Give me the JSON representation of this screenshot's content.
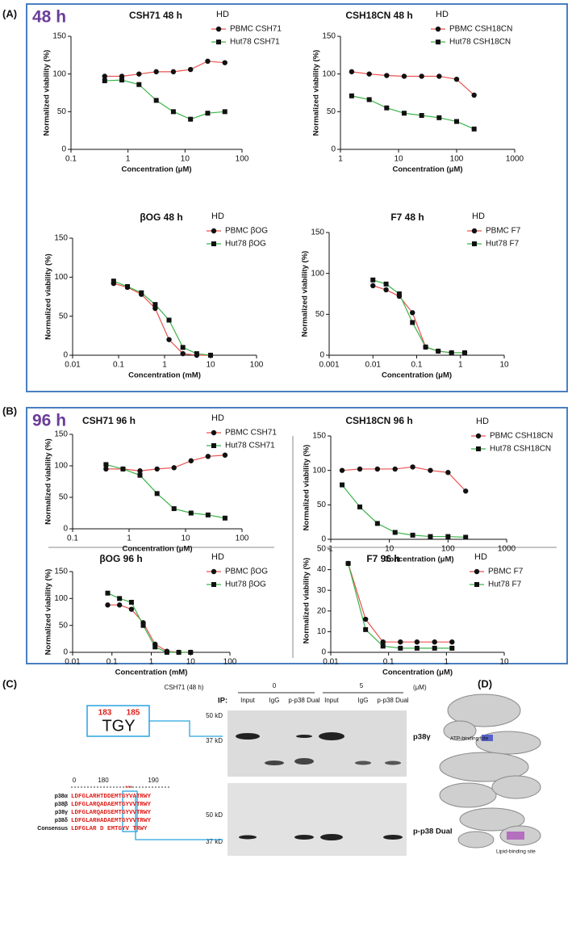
{
  "chart_data": [
    {
      "type": "line",
      "title": "CSH71 48 h",
      "xlabel": "Concentration (μM)",
      "ylabel": "Normalized viability (%)",
      "legend_title": "HD",
      "xscale": "log",
      "x": [
        0.39,
        0.78,
        1.56,
        3.13,
        6.25,
        12.5,
        25,
        50
      ],
      "series": [
        {
          "name": "PBMC CSH71",
          "color": "#e8534f",
          "marker": "circle",
          "values": [
            97,
            97,
            100,
            103,
            103,
            106,
            117,
            115
          ]
        },
        {
          "name": "Hut78 CSH71",
          "color": "#3cb34a",
          "marker": "square",
          "values": [
            91,
            92,
            86,
            65,
            50,
            40,
            48,
            50
          ]
        }
      ],
      "xlim": [
        0.1,
        100
      ],
      "xticks": [
        0.1,
        1,
        10,
        100
      ],
      "ylim": [
        0,
        150
      ],
      "yticks": [
        0,
        50,
        100,
        150
      ]
    },
    {
      "type": "line",
      "title": "CSH18CN 48 h",
      "xlabel": "Concentration (μM)",
      "ylabel": "Normalized viability (%)",
      "legend_title": "HD",
      "xscale": "log",
      "x": [
        1.56,
        3.13,
        6.25,
        12.5,
        25,
        50,
        100,
        200
      ],
      "series": [
        {
          "name": "PBMC CSH18CN",
          "color": "#e8534f",
          "marker": "circle",
          "values": [
            103,
            100,
            98,
            97,
            97,
            97,
            93,
            72
          ]
        },
        {
          "name": "Hut78 CSH18CN",
          "color": "#3cb34a",
          "marker": "square",
          "values": [
            71,
            66,
            55,
            48,
            45,
            42,
            37,
            27
          ]
        }
      ],
      "xlim": [
        1,
        1000
      ],
      "xticks": [
        1,
        10,
        100,
        1000
      ],
      "ylim": [
        0,
        150
      ],
      "yticks": [
        0,
        50,
        100,
        150
      ]
    },
    {
      "type": "line",
      "title": "βOG 48 h",
      "xlabel": "Concentration (mM)",
      "ylabel": "Normalized viability (%)",
      "legend_title": "HD",
      "xscale": "log",
      "x": [
        0.078,
        0.156,
        0.313,
        0.625,
        1.25,
        2.5,
        5,
        10
      ],
      "series": [
        {
          "name": "PBMC βOG",
          "color": "#e8534f",
          "marker": "circle",
          "values": [
            92,
            87,
            78,
            60,
            20,
            2,
            0,
            0
          ]
        },
        {
          "name": "Hut78 βOG",
          "color": "#3cb34a",
          "marker": "square",
          "values": [
            95,
            88,
            80,
            65,
            45,
            10,
            2,
            0
          ]
        }
      ],
      "xlim": [
        0.01,
        100
      ],
      "xticks": [
        0.01,
        0.1,
        1,
        10,
        100
      ],
      "ylim": [
        0,
        150
      ],
      "yticks": [
        0,
        50,
        100,
        150
      ]
    },
    {
      "type": "line",
      "title": "F7 48 h",
      "xlabel": "Concentration (μM)",
      "ylabel": "Normalized viability (%)",
      "legend_title": "HD",
      "xscale": "log",
      "x": [
        0.01,
        0.02,
        0.04,
        0.08,
        0.16,
        0.31,
        0.625,
        1.25
      ],
      "series": [
        {
          "name": "PBMC F7",
          "color": "#e8534f",
          "marker": "circle",
          "values": [
            85,
            80,
            72,
            52,
            10,
            5,
            3,
            3
          ]
        },
        {
          "name": "Hut78 F7",
          "color": "#3cb34a",
          "marker": "square",
          "values": [
            92,
            87,
            75,
            40,
            10,
            5,
            3,
            3
          ]
        }
      ],
      "xlim": [
        0.001,
        10
      ],
      "xticks": [
        0.001,
        0.01,
        0.1,
        1,
        10
      ],
      "ylim": [
        0,
        150
      ],
      "yticks": [
        0,
        50,
        100,
        150
      ]
    },
    {
      "type": "line",
      "title": "CSH71 96 h",
      "xlabel": "Concentration (μM)",
      "ylabel": "Normalized viability (%)",
      "legend_title": "HD",
      "xscale": "log",
      "x": [
        0.39,
        0.78,
        1.56,
        3.13,
        6.25,
        12.5,
        25,
        50
      ],
      "series": [
        {
          "name": "PBMC CSH71",
          "color": "#e8534f",
          "marker": "circle",
          "values": [
            95,
            95,
            92,
            95,
            97,
            108,
            115,
            117
          ]
        },
        {
          "name": "Hut78 CSH71",
          "color": "#3cb34a",
          "marker": "square",
          "values": [
            102,
            95,
            85,
            56,
            32,
            25,
            22,
            17
          ]
        }
      ],
      "xlim": [
        0.1,
        100
      ],
      "xticks": [
        0.1,
        1,
        10,
        100
      ],
      "ylim": [
        0,
        150
      ],
      "yticks": [
        0,
        50,
        100,
        150
      ]
    },
    {
      "type": "line",
      "title": "CSH18CN 96 h",
      "xlabel": "Concentration (μM)",
      "ylabel": "Normalized viability (%)",
      "legend_title": "HD",
      "xscale": "log",
      "x": [
        1.56,
        3.13,
        6.25,
        12.5,
        25,
        50,
        100,
        200
      ],
      "series": [
        {
          "name": "PBMC CSH18CN",
          "color": "#e8534f",
          "marker": "circle",
          "values": [
            100,
            102,
            102,
            102,
            105,
            100,
            97,
            70
          ]
        },
        {
          "name": "Hut78 CSH18CN",
          "color": "#3cb34a",
          "marker": "square",
          "values": [
            79,
            47,
            23,
            10,
            6,
            4,
            4,
            3
          ]
        }
      ],
      "xlim": [
        1,
        1000
      ],
      "xticks": [
        1,
        10,
        100,
        1000
      ],
      "ylim": [
        0,
        150
      ],
      "yticks": [
        0,
        50,
        100,
        150
      ]
    },
    {
      "type": "line",
      "title": "βOG 96 h",
      "xlabel": "Concentration (mM)",
      "ylabel": "Normalized viability (%)",
      "legend_title": "HD",
      "xscale": "log",
      "x": [
        0.078,
        0.156,
        0.313,
        0.625,
        1.25,
        2.5,
        5,
        10
      ],
      "series": [
        {
          "name": "PBMC βOG",
          "color": "#e8534f",
          "marker": "circle",
          "values": [
            88,
            88,
            80,
            55,
            15,
            2,
            0,
            0
          ]
        },
        {
          "name": "Hut78 βOG",
          "color": "#3cb34a",
          "marker": "square",
          "values": [
            110,
            100,
            93,
            50,
            10,
            0,
            0,
            0
          ]
        }
      ],
      "xlim": [
        0.01,
        100
      ],
      "xticks": [
        0.01,
        0.1,
        1,
        10,
        100
      ],
      "ylim": [
        0,
        150
      ],
      "yticks": [
        0,
        50,
        100,
        150
      ]
    },
    {
      "type": "line",
      "title": "F7 96 h",
      "xlabel": "Concentration (μM)",
      "ylabel": "Normalized viability (%)",
      "legend_title": "HD",
      "xscale": "log",
      "x": [
        0.02,
        0.04,
        0.08,
        0.16,
        0.31,
        0.625,
        1.25
      ],
      "series": [
        {
          "name": "PBMC F7",
          "color": "#e8534f",
          "marker": "circle",
          "values": [
            43,
            16,
            5,
            5,
            5,
            5,
            5
          ]
        },
        {
          "name": "Hut78 F7",
          "color": "#3cb34a",
          "marker": "square",
          "values": [
            43,
            11,
            3,
            2,
            2,
            2,
            2
          ]
        }
      ],
      "xlim": [
        0.01,
        10
      ],
      "xticks": [
        0.01,
        0.1,
        1,
        10
      ],
      "ylim": [
        0,
        50
      ],
      "yticks": [
        0,
        10,
        20,
        30,
        40,
        50
      ]
    }
  ],
  "panel_a": {
    "label": "(A)",
    "time": "48 h"
  },
  "panel_b": {
    "label": "(B)",
    "time": "96 h"
  },
  "panel_c": {
    "label": "(C)",
    "treatment": "CSH71 (48 h)",
    "doses": [
      "0",
      "5"
    ],
    "unit": "(μM)",
    "ip": "IP:",
    "lanes": [
      "Input",
      "IgG",
      "p-p38 Dual",
      "Input",
      "IgG",
      "p-p38 Dual"
    ],
    "blots": [
      "p38γ",
      "p-p38 Dual"
    ],
    "markers": [
      "50 kD",
      "37 kD",
      "50 kD",
      "37 kD"
    ],
    "residues": [
      "183",
      "185"
    ],
    "motif": "TGY",
    "stars": "***",
    "alignment": {
      "positions": [
        "0",
        "180",
        "190"
      ],
      "rows": [
        {
          "name": "p38α",
          "seq": "LDFGLARHTDDEMTGYVATRWY"
        },
        {
          "name": "p38β",
          "seq": "LDFGLARQADAEMTGYVVTRWY"
        },
        {
          "name": "p38γ",
          "seq": "LDFGLARQADSEMTGYVVTRWY"
        },
        {
          "name": "p38δ",
          "seq": "LDFGLARHADAEMTGYVVTRWY"
        },
        {
          "name": "Consensus",
          "seq": "LDFGLAR D EMTGYV TRWY"
        }
      ]
    }
  },
  "panel_d": {
    "label": "(D)",
    "sites": [
      "ATP-binding site",
      "Lipid-binding site"
    ]
  }
}
